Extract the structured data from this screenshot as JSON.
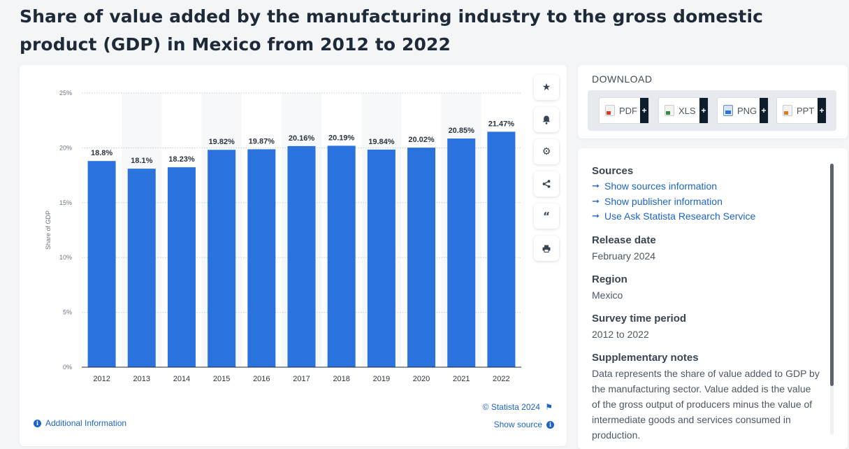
{
  "page": {
    "title": "Share of value added by the manufacturing industry to the gross domestic product (GDP) in Mexico from 2012 to 2022"
  },
  "chart_data": {
    "type": "bar",
    "categories": [
      "2012",
      "2013",
      "2014",
      "2015",
      "2016",
      "2017",
      "2018",
      "2019",
      "2020",
      "2021",
      "2022"
    ],
    "values": [
      18.8,
      18.1,
      18.23,
      19.82,
      19.87,
      20.16,
      20.19,
      19.84,
      20.02,
      20.85,
      21.47
    ],
    "value_labels": [
      "18.8%",
      "18.1%",
      "18.23%",
      "19.82%",
      "19.87%",
      "20.16%",
      "20.19%",
      "19.84%",
      "20.02%",
      "20.85%",
      "21.47%"
    ],
    "title": "",
    "xlabel": "",
    "ylabel": "Share of GDP",
    "ylim": [
      0,
      25
    ],
    "yticks": [
      "0%",
      "5%",
      "10%",
      "15%",
      "20%",
      "25%"
    ],
    "grid": true,
    "bar_color": "#2a72de"
  },
  "chart_footer": {
    "credit": "© Statista 2024",
    "show_source": "Show source",
    "additional_info": "Additional Information"
  },
  "toolbar": {
    "icons": [
      "star-icon",
      "bell-icon",
      "gear-icon",
      "share-icon",
      "quote-icon",
      "print-icon"
    ]
  },
  "download": {
    "title": "DOWNLOAD",
    "buttons": [
      {
        "label": "PDF",
        "plus": "+",
        "color": "#d93b2b"
      },
      {
        "label": "XLS",
        "plus": "+",
        "color": "#2f8f3a"
      },
      {
        "label": "PNG",
        "plus": "+",
        "color": "#2a72de"
      },
      {
        "label": "PPT",
        "plus": "+",
        "color": "#e07a26"
      }
    ]
  },
  "info": {
    "sources_heading": "Sources",
    "source_links": [
      "Show sources information",
      "Show publisher information",
      "Use Ask Statista Research Service"
    ],
    "release_heading": "Release date",
    "release_value": "February 2024",
    "region_heading": "Region",
    "region_value": "Mexico",
    "survey_heading": "Survey time period",
    "survey_value": "2012 to 2022",
    "notes_heading": "Supplementary notes",
    "notes_lines": [
      "Data represents the share of value added to GDP by",
      "the manufacturing sector. Value added is the value",
      "of the gross output of producers minus the value of",
      "intermediate goods and services consumed in",
      "production."
    ]
  }
}
